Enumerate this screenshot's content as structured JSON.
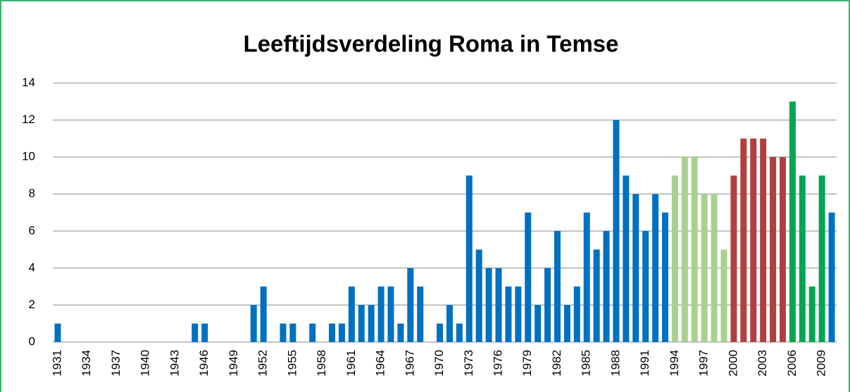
{
  "chart_data": {
    "type": "bar",
    "title": "Leeftijdsverdeling Roma in Temse",
    "categories": [
      "1931",
      null,
      null,
      "1934",
      null,
      null,
      "1937",
      null,
      null,
      "1940",
      null,
      null,
      "1943",
      null,
      null,
      "1946",
      null,
      null,
      "1949",
      null,
      null,
      "1952",
      null,
      null,
      "1955",
      null,
      null,
      "1958",
      null,
      null,
      "1961",
      null,
      null,
      "1964",
      null,
      null,
      "1967",
      null,
      null,
      "1970",
      null,
      null,
      "1973",
      null,
      null,
      "1976",
      null,
      null,
      "1979",
      null,
      null,
      "1982",
      null,
      null,
      "1985",
      null,
      null,
      "1988",
      null,
      null,
      "1991",
      null,
      null,
      "1994",
      null,
      null,
      "1997",
      null,
      null,
      "2000",
      null,
      null,
      "2003",
      null,
      null,
      "2006",
      null,
      null,
      "2009",
      null
    ],
    "values": [
      1,
      0,
      0,
      0,
      0,
      0,
      0,
      0,
      0,
      0,
      0,
      0,
      0,
      0,
      1,
      1,
      0,
      0,
      0,
      0,
      2,
      3,
      0,
      1,
      1,
      0,
      1,
      0,
      1,
      1,
      3,
      2,
      2,
      3,
      3,
      1,
      4,
      3,
      0,
      1,
      2,
      1,
      9,
      5,
      4,
      4,
      3,
      3,
      7,
      2,
      4,
      6,
      2,
      3,
      7,
      5,
      6,
      12,
      9,
      8,
      6,
      8,
      7,
      9,
      10,
      10,
      8,
      8,
      5,
      9,
      11,
      11,
      11,
      10,
      10,
      13,
      9,
      3,
      9,
      7
    ],
    "colors": [
      "#0070c0",
      "#0070c0",
      "#0070c0",
      "#0070c0",
      "#0070c0",
      "#0070c0",
      "#0070c0",
      "#0070c0",
      "#0070c0",
      "#0070c0",
      "#0070c0",
      "#0070c0",
      "#0070c0",
      "#0070c0",
      "#0070c0",
      "#0070c0",
      "#0070c0",
      "#0070c0",
      "#0070c0",
      "#0070c0",
      "#0070c0",
      "#0070c0",
      "#0070c0",
      "#0070c0",
      "#0070c0",
      "#0070c0",
      "#0070c0",
      "#0070c0",
      "#0070c0",
      "#0070c0",
      "#0070c0",
      "#0070c0",
      "#0070c0",
      "#0070c0",
      "#0070c0",
      "#0070c0",
      "#0070c0",
      "#0070c0",
      "#0070c0",
      "#0070c0",
      "#0070c0",
      "#0070c0",
      "#0070c0",
      "#0070c0",
      "#0070c0",
      "#0070c0",
      "#0070c0",
      "#0070c0",
      "#0070c0",
      "#0070c0",
      "#0070c0",
      "#0070c0",
      "#0070c0",
      "#0070c0",
      "#0070c0",
      "#0070c0",
      "#0070c0",
      "#0070c0",
      "#0070c0",
      "#0070c0",
      "#0070c0",
      "#0070c0",
      "#0070c0",
      "#a9d18e",
      "#a9d18e",
      "#a9d18e",
      "#a9d18e",
      "#a9d18e",
      "#a9d18e",
      "#b04040",
      "#b04040",
      "#b04040",
      "#b04040",
      "#b04040",
      "#b04040",
      "#00a651",
      "#00a651",
      "#00a651",
      "#00a651",
      "#0070c0"
    ],
    "ylim": [
      0,
      14
    ],
    "yticks": [
      0,
      2,
      4,
      6,
      8,
      10,
      12,
      14
    ],
    "grid": true
  }
}
